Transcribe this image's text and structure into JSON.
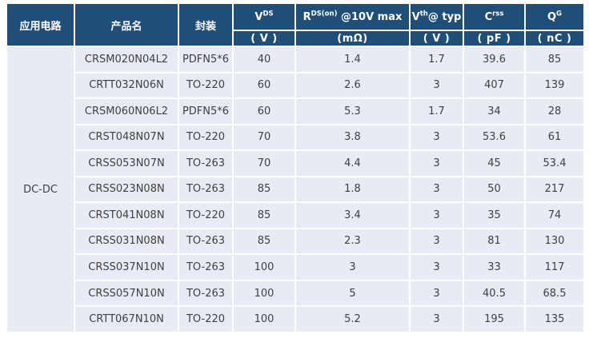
{
  "table": {
    "header": {
      "col_app": "应用电路",
      "col_product": "产品名",
      "col_package": "封装",
      "params": [
        {
          "base": "V",
          "sup": "DS",
          "rest": "",
          "unit": "( V )"
        },
        {
          "base": "R",
          "sup": "DS(on)",
          "rest": " @10V max",
          "unit": "(mΩ)"
        },
        {
          "base": "V",
          "sup": "th",
          "rest": "@ typ",
          "unit": "( V )"
        },
        {
          "base": "C",
          "sup": "rss",
          "rest": "",
          "unit": "( pF )"
        },
        {
          "base": "Q",
          "sup": "G",
          "rest": "",
          "unit": "( nC )"
        }
      ]
    },
    "application": "DC-DC",
    "rows": [
      [
        "CRSM020N04L2",
        "PDFN5*6",
        "40",
        "1.4",
        "1.7",
        "39.6",
        "85"
      ],
      [
        "CRTT032N06N",
        "TO-220",
        "60",
        "2.6",
        "3",
        "407",
        "139"
      ],
      [
        "CRSM060N06L2",
        "PDFN5*6",
        "60",
        "5.3",
        "1.7",
        "34",
        "28"
      ],
      [
        "CRST048N07N",
        "TO-220",
        "70",
        "3.8",
        "3",
        "53.6",
        "61"
      ],
      [
        "CRSS053N07N",
        "TO-263",
        "70",
        "4.4",
        "3",
        "45",
        "53.4"
      ],
      [
        "CRSS023N08N",
        "TO-263",
        "85",
        "1.8",
        "3",
        "50",
        "217"
      ],
      [
        "CRST041N08N",
        "TO-220",
        "85",
        "3.4",
        "3",
        "35",
        "74"
      ],
      [
        "CRSS031N08N",
        "TO-263",
        "85",
        "2.3",
        "3",
        "81",
        "130"
      ],
      [
        "CRSS037N10N",
        "TO-263",
        "100",
        "3",
        "3",
        "33",
        "117"
      ],
      [
        "CRSS057N10N",
        "TO-263",
        "100",
        "5",
        "3",
        "40.5",
        "68.5"
      ],
      [
        "CRTT067N10N",
        "TO-220",
        "100",
        "5.2",
        "3",
        "195",
        "135"
      ]
    ],
    "colors": {
      "header_bg": "#1F4E79",
      "row_bg": "#E9EBF4",
      "grid": "#FFFFFF",
      "body_text": "#3F3F3F"
    }
  }
}
